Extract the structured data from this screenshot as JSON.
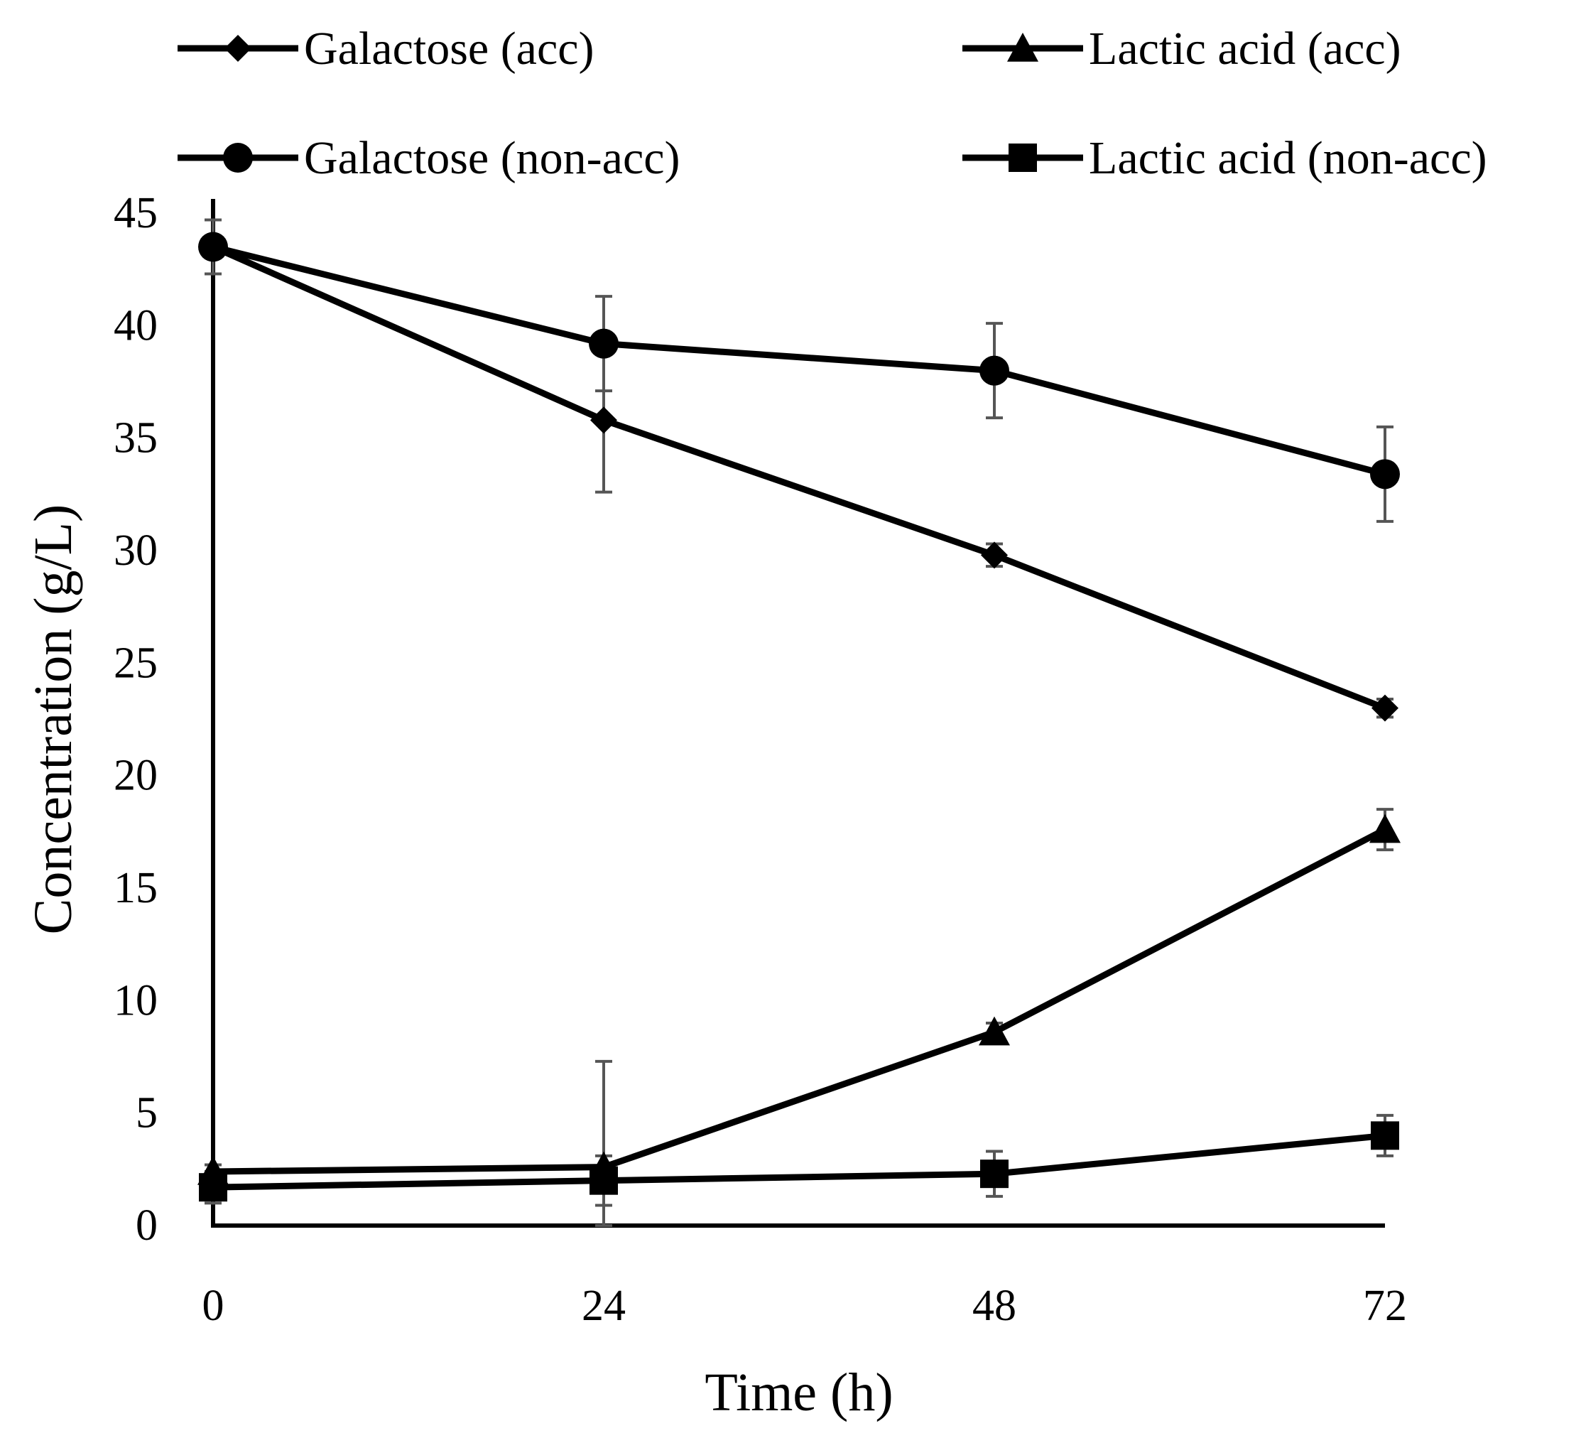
{
  "chart_data": {
    "type": "line",
    "title": "",
    "xlabel": "Time (h)",
    "ylabel": "Concentration (g/L)",
    "x": [
      0,
      24,
      48,
      72
    ],
    "x_tick_labels": [
      "0",
      "24",
      "48",
      "72"
    ],
    "ylim": [
      0,
      45
    ],
    "y_ticks": [
      0,
      5,
      10,
      15,
      20,
      25,
      30,
      35,
      40,
      45
    ],
    "y_tick_labels": [
      "0",
      "5",
      "10",
      "15",
      "20",
      "25",
      "30",
      "35",
      "40",
      "45"
    ],
    "grid": false,
    "legend_position": "top",
    "series": [
      {
        "name": "Galactose (acc)",
        "marker": "diamond",
        "values": [
          43.5,
          35.8,
          29.8,
          23.0
        ],
        "errors": [
          1.2,
          3.2,
          0.5,
          0.4
        ]
      },
      {
        "name": "Lactic acid (acc)",
        "marker": "triangle",
        "values": [
          2.4,
          2.6,
          8.6,
          17.6
        ],
        "errors": [
          0.3,
          4.7,
          0.4,
          0.9
        ]
      },
      {
        "name": "Galactose (non-acc)",
        "marker": "circle",
        "values": [
          43.5,
          39.2,
          38.0,
          33.4
        ],
        "errors": [
          1.2,
          2.1,
          2.1,
          2.1
        ]
      },
      {
        "name": "Lactic acid (non-acc)",
        "marker": "square",
        "values": [
          1.7,
          2.0,
          2.3,
          4.0
        ],
        "errors": [
          0.7,
          1.1,
          1.0,
          0.9
        ]
      }
    ]
  }
}
